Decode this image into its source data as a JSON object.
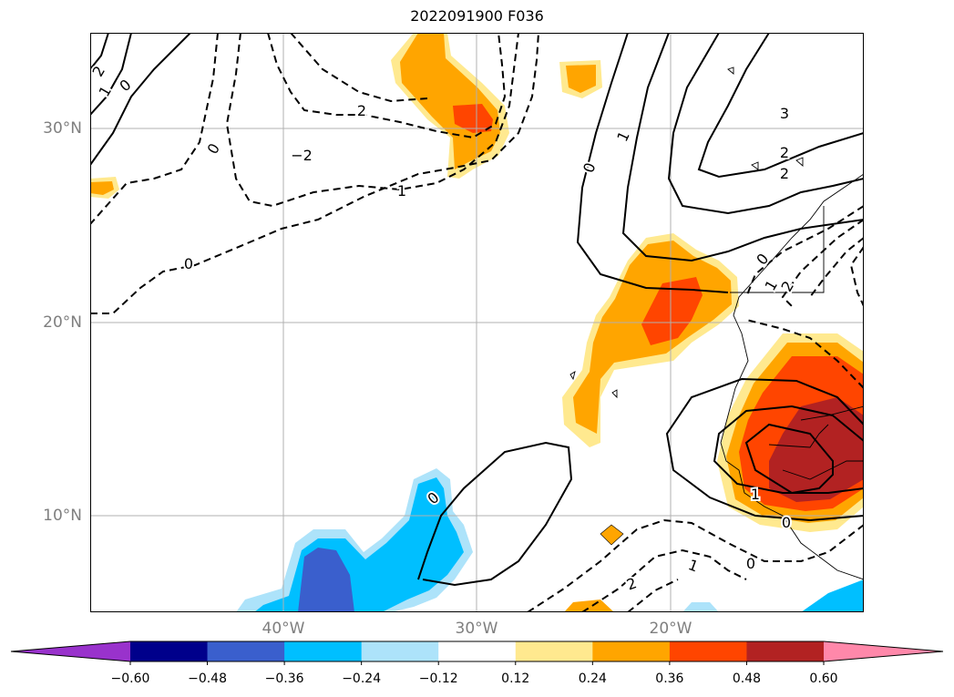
{
  "title": "2022091900 F036",
  "lat_labels": [
    "30°N",
    "20°N",
    "10°N"
  ],
  "lon_labels": [
    "40°W",
    "30°W",
    "20°W"
  ],
  "colorbar": {
    "ticks": [
      "−0.60",
      "−0.48",
      "−0.36",
      "−0.24",
      "−0.12",
      "0.12",
      "0.24",
      "0.36",
      "0.48",
      "0.60"
    ],
    "colors": [
      "#9932cc",
      "#00008b",
      "#3a5fcd",
      "#00bfff",
      "#ade3fa",
      "#ffffff",
      "#ffe98f",
      "#ffa500",
      "#ff4500",
      "#b22222",
      "#ff88aa"
    ]
  },
  "contour_labels": [
    {
      "text": "2"
    },
    {
      "text": "1"
    },
    {
      "text": "0"
    },
    {
      "text": "2"
    },
    {
      "text": "−2"
    },
    {
      "text": "0"
    },
    {
      "text": "1"
    },
    {
      "text": "0"
    },
    {
      "text": "0"
    },
    {
      "text": "1"
    },
    {
      "text": "3"
    },
    {
      "text": "2"
    },
    {
      "text": "2"
    },
    {
      "text": "0"
    },
    {
      "text": "1"
    },
    {
      "text": "2"
    },
    {
      "text": "1"
    },
    {
      "text": "0"
    },
    {
      "text": "0"
    },
    {
      "text": "1"
    },
    {
      "text": "0"
    },
    {
      "text": "2"
    }
  ]
}
